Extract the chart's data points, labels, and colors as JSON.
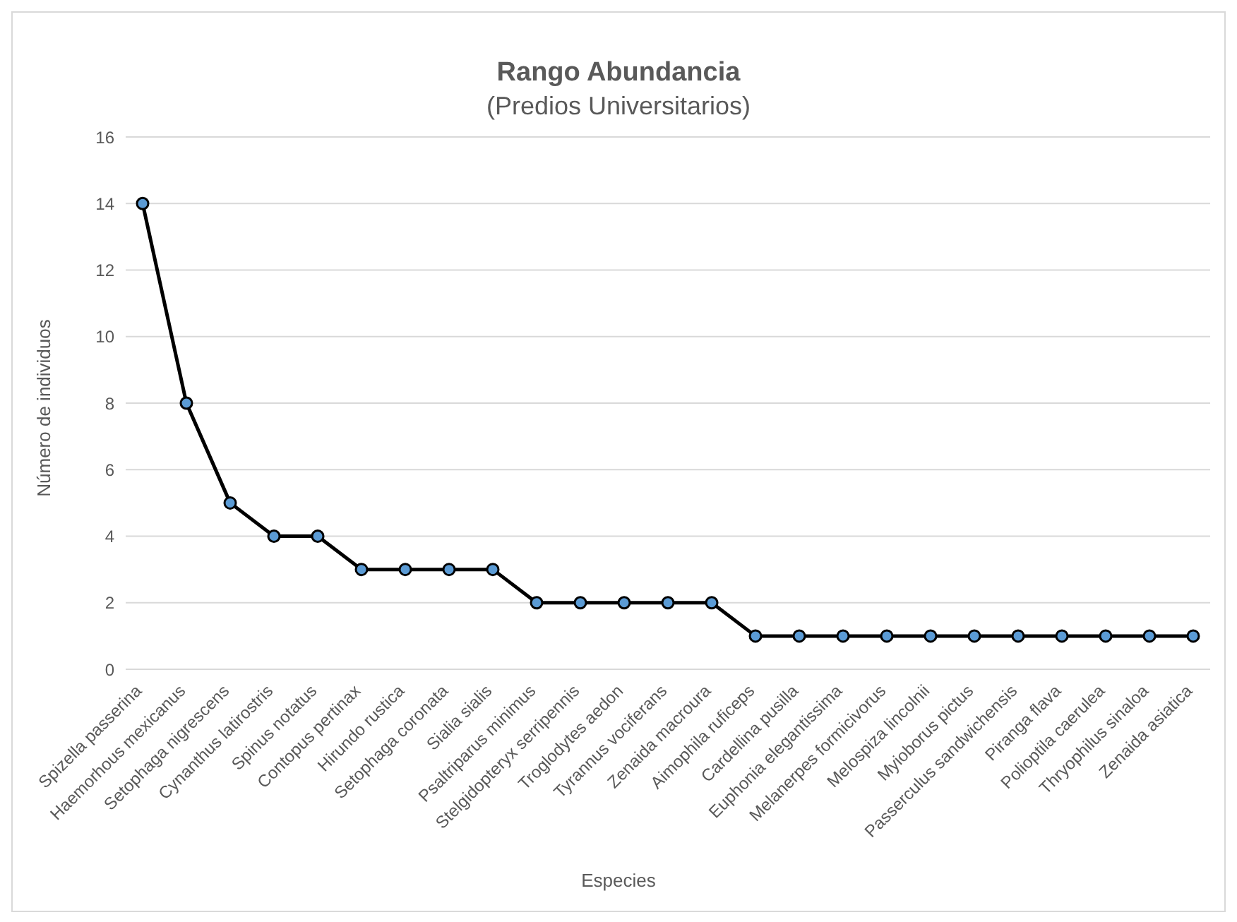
{
  "chart_data": {
    "type": "line",
    "title": "Rango Abundancia",
    "subtitle": "(Predios Universitarios)",
    "xlabel": "Especies",
    "ylabel": "Número de individuos",
    "categories": [
      "Spizella passerina",
      "Haemorhous mexicanus",
      "Setophaga nigrescens",
      "Cynanthus latirostris",
      "Spinus notatus",
      "Contopus pertinax",
      "Hirundo rustica",
      "Setophaga coronata",
      "Sialia sialis",
      "Psaltriparus minimus",
      "Stelgidopteryx serripennis",
      "Troglodytes aedon",
      "Tyrannus vociferans",
      "Zenaida macroura",
      "Aimophila ruficeps",
      "Cardellina pusilla",
      "Euphonia elegantissima",
      "Melanerpes formicivorus",
      "Melospiza lincolnii",
      "Myioborus pictus",
      "Passerculus sandwichensis",
      "Piranga flava",
      "Polioptila caerulea",
      "Thryophilus sinaloa",
      "Zenaida asiatica"
    ],
    "series": [
      {
        "color": "#000000",
        "values": [
          14,
          8,
          5,
          4,
          4,
          3,
          3,
          3,
          3,
          2,
          2,
          2,
          2,
          2,
          1,
          1,
          1,
          1,
          1,
          1,
          1,
          1,
          1,
          1,
          1
        ]
      }
    ],
    "ylim": [
      0,
      16
    ],
    "yticks": [
      0,
      2,
      4,
      6,
      8,
      10,
      12,
      14,
      16
    ],
    "grid": "y",
    "marker": "circle",
    "line_style": "solid",
    "legend": false
  }
}
